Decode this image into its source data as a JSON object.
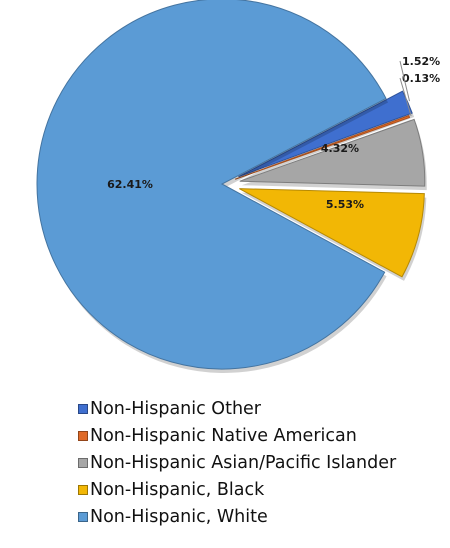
{
  "chart_data": {
    "type": "pie",
    "exploded": true,
    "series": [
      {
        "name": "Non-Hispanic Other",
        "value": 1.52,
        "label": "1.52%",
        "color": "#3f6fcf"
      },
      {
        "name": "Non-Hispanic Native American",
        "value": 0.13,
        "label": "0.13%",
        "color": "#e06a28"
      },
      {
        "name": "Non-Hispanic Asian/Pacific Islander",
        "value": 4.32,
        "label": "4.32%",
        "color": "#a6a6a6"
      },
      {
        "name": "Non-Hispanic, Black",
        "value": 5.53,
        "label": "5.53%",
        "color": "#f2b705"
      },
      {
        "name": "Non-Hispanic, White",
        "value": 62.41,
        "label": "62.41%",
        "color": "#5b9bd5"
      }
    ],
    "legend": "bottom"
  }
}
